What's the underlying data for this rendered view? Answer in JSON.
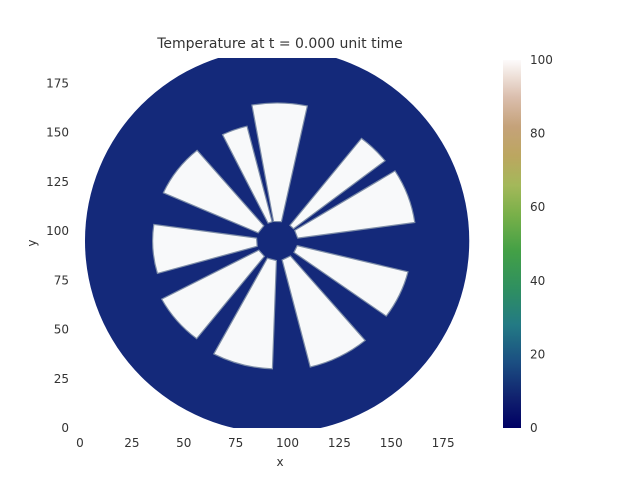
{
  "chart_data": {
    "type": "heatmap",
    "title": "Temperature at t = 0.000 unit time",
    "xlabel": "x",
    "ylabel": "y",
    "xlim": [
      0,
      190
    ],
    "ylim": [
      0,
      190
    ],
    "x_ticks": [
      "0",
      "25",
      "50",
      "75",
      "100",
      "125",
      "150",
      "175"
    ],
    "y_ticks": [
      "0",
      "25",
      "50",
      "75",
      "100",
      "125",
      "150",
      "175"
    ],
    "colorbar": {
      "range": [
        0,
        100
      ],
      "ticks": [
        "0",
        "20",
        "40",
        "60",
        "80",
        "100"
      ],
      "colormap": "gist_earth-like (navy → teal → green → tan → white)"
    },
    "field": {
      "background_value": null,
      "disc": {
        "center": [
          95,
          95
        ],
        "radius": 95,
        "value": 0
      },
      "fins": {
        "count": 10,
        "value": 100,
        "inner_radius": 10,
        "outer_radius": 70
      }
    },
    "colors": {
      "disc": "#14297a",
      "fin": "#f8f9fa",
      "fin_outline": "#7d8da8"
    }
  }
}
